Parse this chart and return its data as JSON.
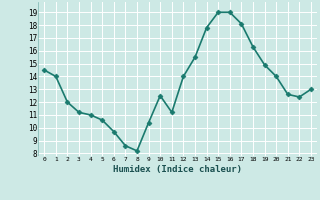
{
  "x": [
    0,
    1,
    2,
    3,
    4,
    5,
    6,
    7,
    8,
    9,
    10,
    11,
    12,
    13,
    14,
    15,
    16,
    17,
    18,
    19,
    20,
    21,
    22,
    23
  ],
  "y": [
    14.5,
    14.0,
    12.0,
    11.2,
    11.0,
    10.6,
    9.7,
    8.6,
    8.2,
    10.4,
    12.5,
    11.2,
    14.0,
    15.5,
    17.8,
    19.0,
    19.0,
    18.1,
    16.3,
    14.9,
    14.0,
    12.6,
    12.4,
    13.0
  ],
  "xlabel": "Humidex (Indice chaleur)",
  "xlim": [
    -0.5,
    23.5
  ],
  "ylim": [
    7.8,
    19.8
  ],
  "xtick_labels": [
    "0",
    "1",
    "2",
    "3",
    "4",
    "5",
    "6",
    "7",
    "8",
    "9",
    "10",
    "11",
    "12",
    "13",
    "14",
    "15",
    "16",
    "17",
    "18",
    "19",
    "20",
    "21",
    "22",
    "23"
  ],
  "yticks": [
    8,
    9,
    10,
    11,
    12,
    13,
    14,
    15,
    16,
    17,
    18,
    19
  ],
  "line_color": "#1a7a6e",
  "bg_color": "#cde9e5",
  "grid_color": "#b8d9d4",
  "marker_size": 2.5,
  "line_width": 1.2
}
